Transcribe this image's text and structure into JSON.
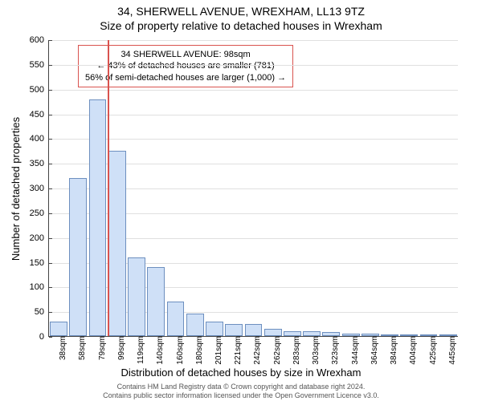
{
  "title_line1": "34, SHERWELL AVENUE, WREXHAM, LL13 9TZ",
  "title_line2": "Size of property relative to detached houses in Wrexham",
  "ylabel": "Number of detached properties",
  "xlabel": "Distribution of detached houses by size in Wrexham",
  "chart": {
    "type": "histogram",
    "ylim": [
      0,
      600
    ],
    "ytick_step": 50,
    "background_color": "#ffffff",
    "grid_color": "#e0e0e0",
    "axis_color": "#444444",
    "bar_fill": "#cfe0f7",
    "bar_stroke": "#6d8fbf",
    "bar_width_ratio": 0.9,
    "label_fontsize": 13,
    "tick_fontsize": 11,
    "xtick_fontsize": 10,
    "categories": [
      "38sqm",
      "58sqm",
      "79sqm",
      "99sqm",
      "119sqm",
      "140sqm",
      "160sqm",
      "180sqm",
      "201sqm",
      "221sqm",
      "242sqm",
      "262sqm",
      "283sqm",
      "303sqm",
      "323sqm",
      "344sqm",
      "364sqm",
      "384sqm",
      "404sqm",
      "425sqm",
      "445sqm"
    ],
    "values": [
      30,
      320,
      480,
      375,
      160,
      140,
      70,
      45,
      30,
      25,
      25,
      15,
      10,
      10,
      8,
      5,
      5,
      3,
      3,
      2,
      2
    ]
  },
  "marker": {
    "value_sqm": 98,
    "position_category_index": 3,
    "line_color": "#d9534f",
    "line_width": 2
  },
  "callout": {
    "border_color": "#d9534f",
    "bg_color": "#ffffff",
    "fontsize": 11,
    "line1": "34 SHERWELL AVENUE: 98sqm",
    "line2": "← 43% of detached houses are smaller (781)",
    "line3": "56% of semi-detached houses are larger (1,000) →"
  },
  "attribution": {
    "line1": "Contains HM Land Registry data © Crown copyright and database right 2024.",
    "line2": "Contains public sector information licensed under the Open Government Licence v3.0."
  }
}
